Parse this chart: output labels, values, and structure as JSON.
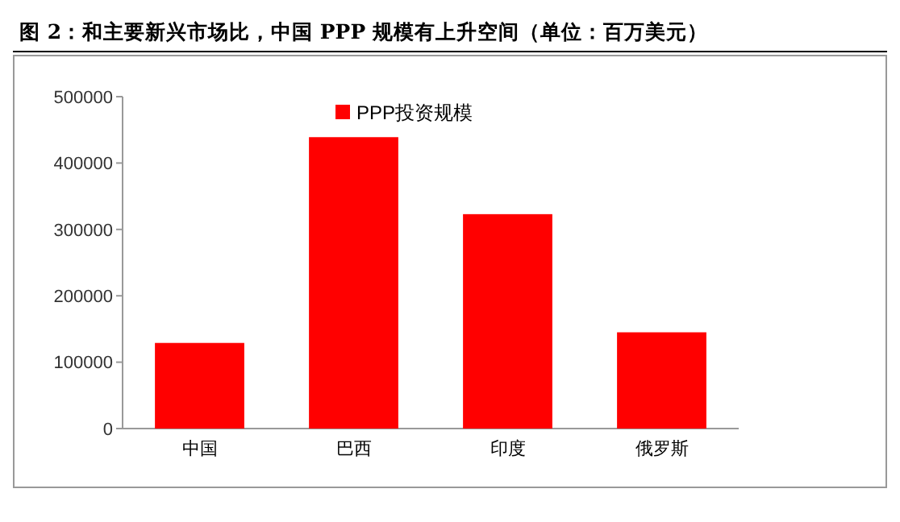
{
  "chart_data": {
    "type": "bar",
    "title": "图 2：和主要新兴市场比，中国 PPP 规模有上升空间（单位：百万美元）",
    "categories": [
      "中国",
      "巴西",
      "印度",
      "俄罗斯"
    ],
    "series": [
      {
        "name": "PPP投资规模",
        "color": "#ff0000",
        "values": [
          129000,
          439000,
          323000,
          145000
        ]
      }
    ],
    "ylim": [
      0,
      500000
    ],
    "yticks": [
      0,
      100000,
      200000,
      300000,
      400000,
      500000
    ],
    "legend": "top"
  }
}
